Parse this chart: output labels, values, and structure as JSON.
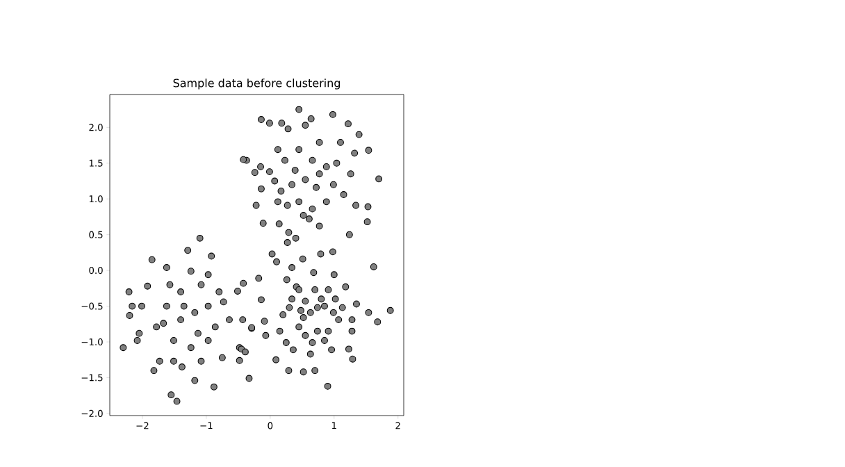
{
  "chart_data": {
    "type": "scatter",
    "title": "Sample data before clustering",
    "xlim": [
      -2.51,
      2.09
    ],
    "ylim": [
      -2.03,
      2.46
    ],
    "xticks": [
      {
        "value": -2,
        "label": "−2"
      },
      {
        "value": -1,
        "label": "−1"
      },
      {
        "value": 0,
        "label": "0"
      },
      {
        "value": 1,
        "label": "1"
      },
      {
        "value": 2,
        "label": "2"
      }
    ],
    "yticks": [
      {
        "value": -2,
        "label": "−2.0"
      },
      {
        "value": -1.5,
        "label": "−1.5"
      },
      {
        "value": -1,
        "label": "−1.0"
      },
      {
        "value": -0.5,
        "label": "−0.5"
      },
      {
        "value": 0,
        "label": "0.0"
      },
      {
        "value": 0.5,
        "label": "0.5"
      },
      {
        "value": 1,
        "label": "1.0"
      },
      {
        "value": 1.5,
        "label": "1.5"
      },
      {
        "value": 2,
        "label": "2.0"
      }
    ],
    "series": [
      {
        "color": "#808080",
        "x": [
          0.45,
          0.98,
          -0.14,
          -0.01,
          0.18,
          0.64,
          1.22,
          1.39,
          1.54,
          1.7,
          -0.37,
          -0.42,
          -0.24,
          -0.22,
          -0.01,
          -0.14,
          -0.11,
          0.14,
          0.29,
          0.27,
          0.4,
          1.24,
          1.52,
          1.53,
          1.34,
          0.27,
          0.61,
          0.52,
          0.34,
          0.55,
          0.77,
          0.99,
          0.88,
          0.66,
          0.23,
          0.12,
          0.45,
          0.77,
          1.1,
          1.32,
          1.26,
          1.15,
          0.88,
          0.66,
          0.45,
          0.17,
          0.07,
          0.39,
          0.72,
          1.04,
          0.12,
          0.55,
          0.28,
          -0.15,
          0.77,
          -2.3,
          -2.21,
          -2.2,
          -1.85,
          -1.55,
          -1.46,
          -1.1,
          -0.92,
          -0.88,
          -1.18,
          -1.38,
          -1.73,
          -1.82,
          -2.05,
          -2.08,
          -2.16,
          -2.01,
          -1.29,
          -1.62,
          -0.48,
          -0.43,
          -0.73,
          -0.64,
          -1.08,
          -1.4,
          -1.62,
          -1.78,
          -1.51,
          -1.24,
          -0.97,
          -0.86,
          -0.97,
          -1.18,
          -1.4,
          -1.57,
          -1.24,
          -0.8,
          -1.51,
          -1.08,
          -0.75,
          -1.67,
          -1.13,
          -1.35,
          -0.97,
          -1.92,
          -0.29,
          -0.33,
          -0.45,
          1.62,
          1.88,
          0.98,
          0.79,
          0.03,
          -0.42,
          -0.51,
          -0.18,
          0.9,
          0.29,
          -0.48,
          -0.39,
          -0.07,
          -0.29,
          -0.09,
          -0.14,
          0.09,
          0.52,
          0.7,
          1.29,
          1.23,
          1.68,
          1.54,
          1.35,
          1.18,
          1.0,
          0.68,
          0.51,
          0.34,
          0.1,
          0.26,
          0.41,
          0.34,
          0.2,
          0.15,
          0.25,
          0.36,
          0.55,
          0.66,
          0.63,
          0.74,
          0.85,
          0.96,
          0.91,
          1.07,
          0.99,
          0.85,
          0.74,
          0.63,
          0.52,
          0.45,
          0.55,
          0.7,
          0.8,
          0.91,
          1.02,
          1.13,
          1.28,
          1.28,
          0.45,
          0.3,
          0.48
        ],
        "values": [
          2.25,
          2.18,
          2.11,
          2.06,
          2.06,
          2.12,
          2.05,
          1.9,
          1.68,
          1.28,
          1.54,
          1.55,
          1.37,
          0.91,
          1.38,
          1.14,
          0.66,
          0.65,
          0.53,
          0.39,
          0.45,
          0.5,
          0.68,
          0.89,
          0.91,
          0.91,
          0.72,
          0.77,
          1.2,
          1.27,
          1.35,
          1.2,
          1.45,
          1.54,
          1.54,
          1.69,
          1.69,
          1.79,
          1.79,
          1.64,
          1.35,
          1.06,
          0.96,
          0.86,
          0.96,
          1.11,
          1.25,
          1.4,
          1.16,
          1.5,
          0.96,
          2.03,
          1.98,
          1.45,
          0.62,
          -1.08,
          -0.3,
          -0.63,
          0.15,
          -1.74,
          -1.83,
          0.45,
          0.2,
          -1.63,
          -1.54,
          -1.35,
          -1.27,
          -1.4,
          -0.88,
          -0.98,
          -0.5,
          -0.5,
          0.28,
          0.04,
          -1.08,
          -0.69,
          -0.44,
          -0.69,
          -0.2,
          -0.3,
          -0.5,
          -0.79,
          -0.98,
          -1.08,
          -0.98,
          -0.79,
          -0.5,
          -0.59,
          -0.69,
          -0.2,
          -0.01,
          -0.3,
          -1.27,
          -1.27,
          -1.22,
          -0.74,
          -0.88,
          -0.5,
          -0.06,
          -0.22,
          -0.81,
          -1.51,
          -1.1,
          0.05,
          -0.56,
          0.26,
          0.23,
          0.23,
          -0.18,
          -0.29,
          -0.11,
          -1.62,
          -1.4,
          -1.26,
          -1.14,
          -0.91,
          -0.8,
          -0.71,
          -0.41,
          -1.25,
          -1.42,
          -1.4,
          -1.24,
          -1.1,
          -0.72,
          -0.59,
          -0.47,
          -0.23,
          -0.06,
          -0.03,
          0.16,
          0.04,
          0.12,
          -0.13,
          -0.23,
          -0.4,
          -0.62,
          -0.85,
          -1.01,
          -1.11,
          -0.91,
          -1.01,
          -1.17,
          -0.85,
          -0.98,
          -1.11,
          -0.85,
          -0.69,
          -0.59,
          -0.5,
          -0.52,
          -0.59,
          -0.66,
          -0.79,
          -0.43,
          -0.27,
          -0.4,
          -0.27,
          -0.4,
          -0.52,
          -0.69,
          -0.85,
          -0.27,
          -0.52,
          -0.56
        ]
      }
    ]
  }
}
